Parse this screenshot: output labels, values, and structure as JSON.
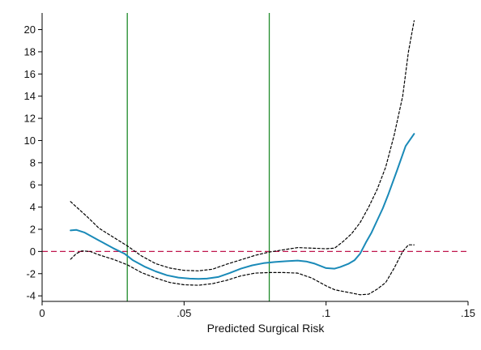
{
  "chart_data": {
    "type": "line",
    "title": "",
    "xlabel": "Predicted Surgical Risk",
    "ylabel": "",
    "xlim": [
      0,
      0.15
    ],
    "ylim": [
      -4.5,
      21.5
    ],
    "x_ticks": [
      {
        "value": 0,
        "label": "0"
      },
      {
        "value": 0.05,
        "label": ".05"
      },
      {
        "value": 0.1,
        "label": ".1"
      },
      {
        "value": 0.15,
        "label": ".15"
      }
    ],
    "y_ticks": [
      {
        "value": -4,
        "label": "-4"
      },
      {
        "value": -2,
        "label": "-2"
      },
      {
        "value": 0,
        "label": "0"
      },
      {
        "value": 2,
        "label": "2"
      },
      {
        "value": 4,
        "label": "4"
      },
      {
        "value": 6,
        "label": "6"
      },
      {
        "value": 8,
        "label": "8"
      },
      {
        "value": 10,
        "label": "10"
      },
      {
        "value": 12,
        "label": "12"
      },
      {
        "value": 14,
        "label": "14"
      },
      {
        "value": 16,
        "label": "16"
      },
      {
        "value": 18,
        "label": "18"
      },
      {
        "value": 20,
        "label": "20"
      }
    ],
    "grid": false,
    "series": [
      {
        "role": "estimate",
        "color": "#1a8ab8",
        "style": "solid",
        "x": [
          0.01,
          0.012,
          0.015,
          0.02,
          0.025,
          0.029,
          0.032,
          0.036,
          0.04,
          0.044,
          0.048,
          0.052,
          0.055,
          0.058,
          0.062,
          0.066,
          0.07,
          0.074,
          0.078,
          0.082,
          0.086,
          0.09,
          0.093,
          0.096,
          0.1,
          0.103,
          0.105,
          0.108,
          0.11,
          0.112,
          0.114,
          0.116,
          0.118,
          0.12,
          0.122,
          0.125,
          0.128,
          0.131
        ],
        "y": [
          1.9,
          1.95,
          1.7,
          1.0,
          0.3,
          -0.2,
          -0.8,
          -1.35,
          -1.8,
          -2.15,
          -2.35,
          -2.45,
          -2.48,
          -2.45,
          -2.3,
          -1.95,
          -1.55,
          -1.25,
          -1.05,
          -0.95,
          -0.88,
          -0.82,
          -0.9,
          -1.1,
          -1.5,
          -1.55,
          -1.4,
          -1.1,
          -0.8,
          -0.2,
          0.8,
          1.7,
          2.8,
          3.9,
          5.2,
          7.3,
          9.5,
          10.6
        ]
      },
      {
        "role": "upper-ci",
        "color": "#000000",
        "style": "dashed",
        "x": [
          0.01,
          0.013,
          0.016,
          0.02,
          0.025,
          0.03,
          0.035,
          0.04,
          0.045,
          0.05,
          0.055,
          0.06,
          0.065,
          0.07,
          0.075,
          0.08,
          0.085,
          0.09,
          0.095,
          0.1,
          0.103,
          0.106,
          0.109,
          0.112,
          0.115,
          0.118,
          0.121,
          0.124,
          0.127,
          0.129,
          0.131
        ],
        "y": [
          4.5,
          3.8,
          3.1,
          2.1,
          1.3,
          0.5,
          -0.4,
          -1.1,
          -1.5,
          -1.7,
          -1.75,
          -1.6,
          -1.15,
          -0.75,
          -0.35,
          -0.05,
          0.15,
          0.35,
          0.3,
          0.25,
          0.3,
          0.9,
          1.6,
          2.6,
          4.0,
          5.6,
          7.6,
          10.5,
          14.0,
          18.0,
          20.8
        ]
      },
      {
        "role": "lower-ci",
        "color": "#000000",
        "style": "dashed",
        "x": [
          0.01,
          0.012,
          0.014,
          0.017,
          0.02,
          0.025,
          0.03,
          0.035,
          0.04,
          0.045,
          0.05,
          0.055,
          0.06,
          0.065,
          0.07,
          0.075,
          0.08,
          0.085,
          0.09,
          0.095,
          0.1,
          0.103,
          0.106,
          0.109,
          0.112,
          0.115,
          0.118,
          0.121,
          0.124,
          0.127,
          0.129,
          0.131
        ],
        "y": [
          -0.7,
          -0.2,
          0.05,
          0.0,
          -0.3,
          -0.7,
          -1.2,
          -1.9,
          -2.4,
          -2.8,
          -3.0,
          -3.05,
          -2.9,
          -2.6,
          -2.2,
          -1.95,
          -1.9,
          -1.9,
          -1.95,
          -2.4,
          -3.1,
          -3.45,
          -3.6,
          -3.75,
          -3.9,
          -3.85,
          -3.4,
          -2.8,
          -1.5,
          0.0,
          0.6,
          0.6
        ]
      }
    ],
    "reference_lines": [
      {
        "orientation": "horizontal",
        "value": 0,
        "color": "#c0174e",
        "style": "dashed"
      },
      {
        "orientation": "vertical",
        "value": 0.03,
        "color": "#1f8a2a",
        "style": "solid"
      },
      {
        "orientation": "vertical",
        "value": 0.08,
        "color": "#1f8a2a",
        "style": "solid"
      }
    ]
  }
}
